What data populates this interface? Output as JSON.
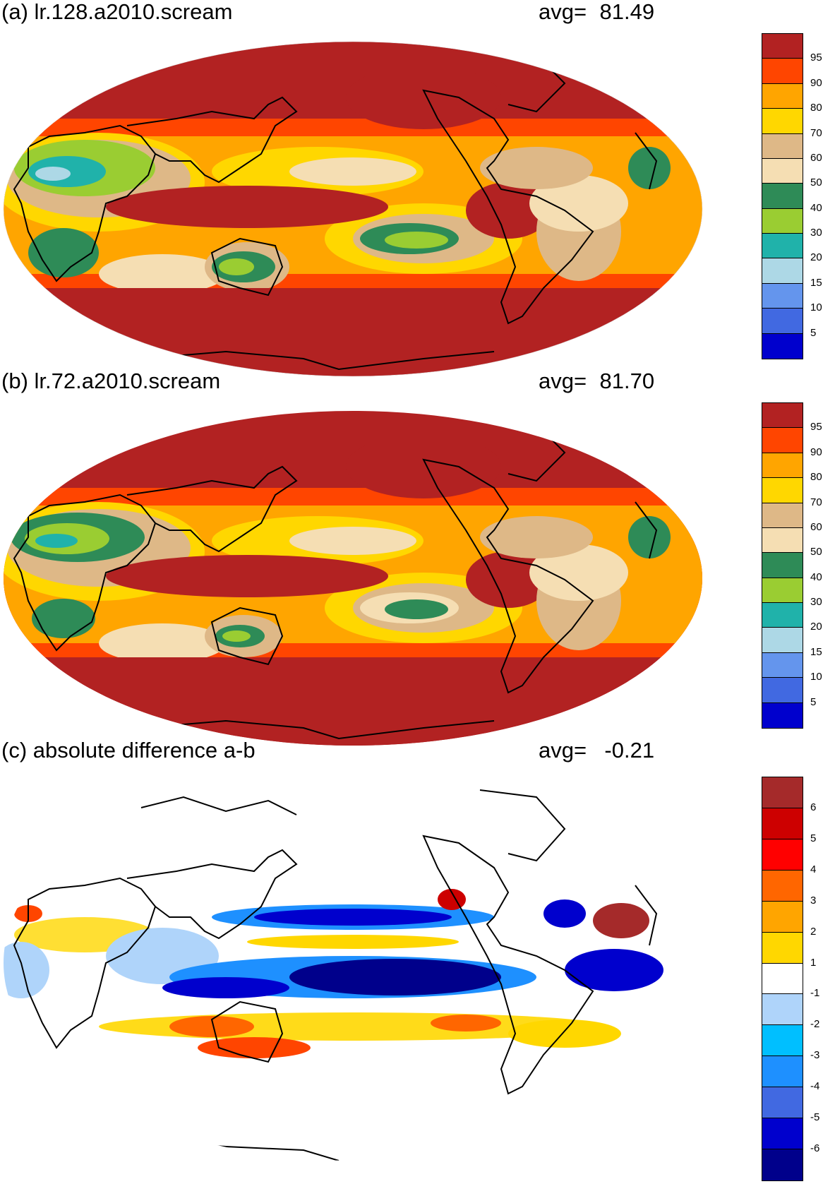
{
  "panels": [
    {
      "id": "a",
      "title": "(a) lr.128.a2010.scream",
      "avg_label": "avg=",
      "avg_value": "81.49",
      "colorbar": {
        "colors": [
          "#b22222",
          "#ff4500",
          "#ffa500",
          "#ffd700",
          "#deb887",
          "#f5deb3",
          "#2e8b57",
          "#9acd32",
          "#20b2aa",
          "#add8e6",
          "#6495ed",
          "#4169e1",
          "#0000cd"
        ],
        "labels": [
          "95",
          "90",
          "80",
          "70",
          "60",
          "50",
          "40",
          "30",
          "20",
          "15",
          "10",
          "5"
        ]
      }
    },
    {
      "id": "b",
      "title": "(b) lr.72.a2010.scream",
      "avg_label": "avg=",
      "avg_value": "81.70",
      "colorbar": {
        "colors": [
          "#b22222",
          "#ff4500",
          "#ffa500",
          "#ffd700",
          "#deb887",
          "#f5deb3",
          "#2e8b57",
          "#9acd32",
          "#20b2aa",
          "#add8e6",
          "#6495ed",
          "#4169e1",
          "#0000cd"
        ],
        "labels": [
          "95",
          "90",
          "80",
          "70",
          "60",
          "50",
          "40",
          "30",
          "20",
          "15",
          "10",
          "5"
        ]
      }
    },
    {
      "id": "c",
      "title": "(c) absolute difference a-b",
      "avg_label": "avg=",
      "avg_value": "-0.21",
      "colorbar": {
        "colors": [
          "#a52a2a",
          "#cd0000",
          "#ff0000",
          "#ff6600",
          "#ffa500",
          "#ffd700",
          "#ffffff",
          "#afd4fa",
          "#00bfff",
          "#1e90ff",
          "#4169e1",
          "#0000cd",
          "#00008b"
        ],
        "labels": [
          "6",
          "5",
          "4",
          "3",
          "2",
          "1",
          "-1",
          "-2",
          "-3",
          "-4",
          "-5",
          "-6"
        ]
      }
    }
  ]
}
